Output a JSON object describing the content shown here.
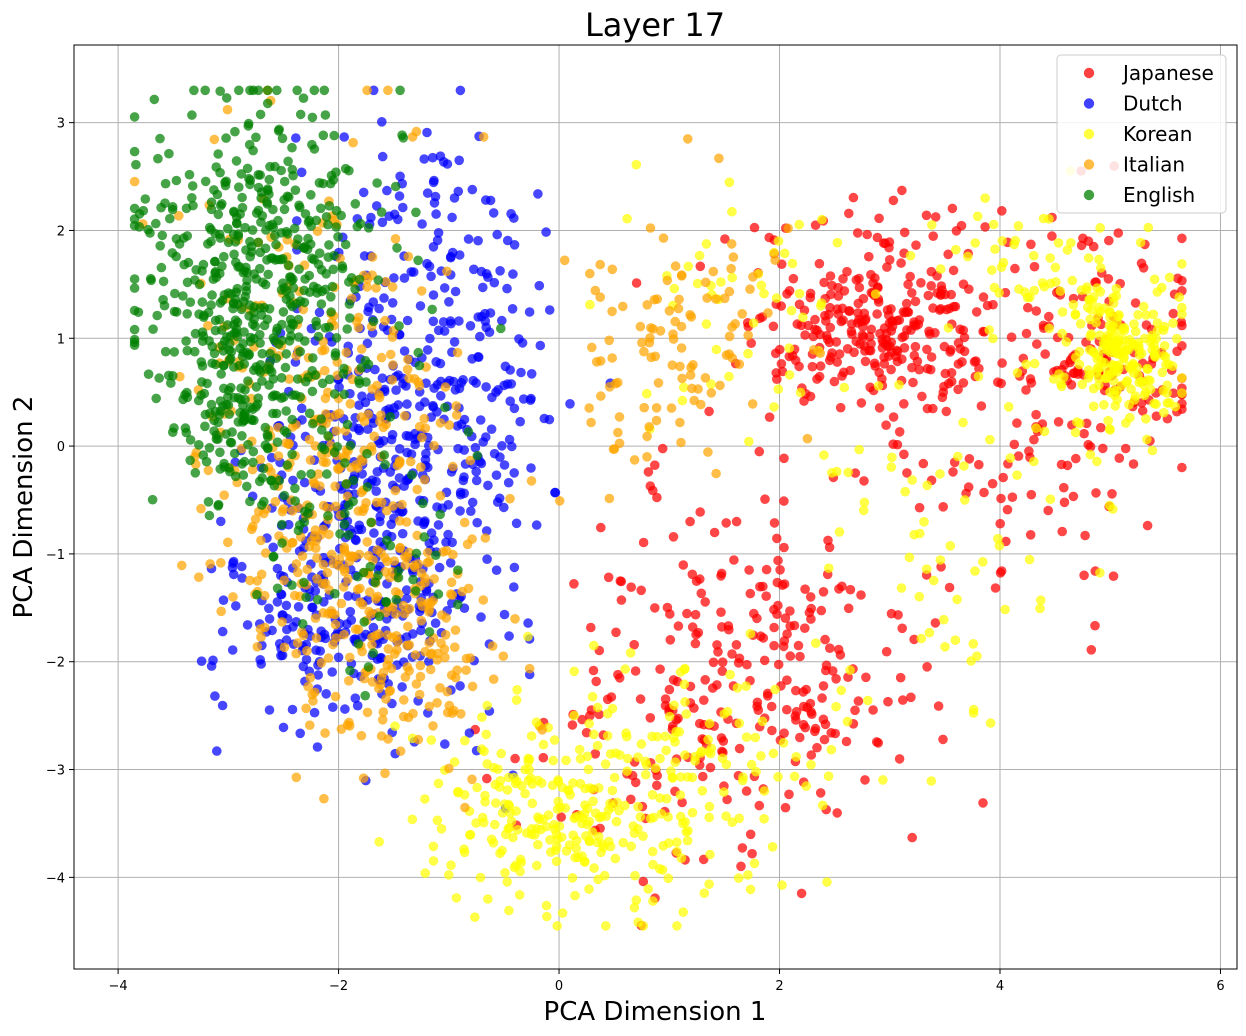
{
  "chart_data": {
    "type": "scatter",
    "title": "Layer 17",
    "xlabel": "PCA Dimension 1",
    "ylabel": "PCA Dimension 2",
    "xlim": [
      -4.4,
      6.15
    ],
    "ylim": [
      -4.85,
      3.72
    ],
    "xticks": [
      -4,
      -2,
      0,
      2,
      4,
      6
    ],
    "yticks": [
      -4,
      -3,
      -2,
      -1,
      0,
      1,
      2,
      3
    ],
    "xtick_labels": [
      "−4",
      "−2",
      "0",
      "2",
      "4",
      "6"
    ],
    "ytick_labels": [
      "−4",
      "−3",
      "−2",
      "−1",
      "0",
      "1",
      "2",
      "3"
    ],
    "grid": true,
    "legend_position": "top-right",
    "series": [
      {
        "name": "Japanese",
        "color": "#ff0000",
        "clusters": [
          {
            "cx": 2.9,
            "cy": 1.0,
            "sx": 0.55,
            "sy": 0.35,
            "n": 260
          },
          {
            "cx": 4.9,
            "cy": 0.9,
            "sx": 0.45,
            "sy": 0.5,
            "n": 130
          },
          {
            "cx": 3.3,
            "cy": 1.9,
            "sx": 0.7,
            "sy": 0.25,
            "n": 40
          },
          {
            "cx": 2.1,
            "cy": -2.1,
            "sx": 0.65,
            "sy": 0.65,
            "n": 150
          },
          {
            "cx": 0.9,
            "cy": -2.7,
            "sx": 0.7,
            "sy": 0.6,
            "n": 110
          },
          {
            "cx": 3.9,
            "cy": -0.4,
            "sx": 0.7,
            "sy": 0.6,
            "n": 80
          },
          {
            "cx": 1.3,
            "cy": -1.0,
            "sx": 0.7,
            "sy": 0.6,
            "n": 40
          }
        ]
      },
      {
        "name": "Dutch",
        "color": "#0000ff",
        "clusters": [
          {
            "cx": -1.6,
            "cy": -0.5,
            "sx": 0.55,
            "sy": 1.0,
            "n": 380
          },
          {
            "cx": -1.2,
            "cy": 1.4,
            "sx": 0.5,
            "sy": 0.9,
            "n": 180
          },
          {
            "cx": -2.1,
            "cy": -1.8,
            "sx": 0.5,
            "sy": 0.55,
            "n": 110
          },
          {
            "cx": -0.5,
            "cy": 0.3,
            "sx": 0.35,
            "sy": 0.9,
            "n": 40
          }
        ]
      },
      {
        "name": "Korean",
        "color": "#ffff00",
        "clusters": [
          {
            "cx": 5.1,
            "cy": 0.85,
            "sx": 0.28,
            "sy": 0.35,
            "n": 220
          },
          {
            "cx": 0.0,
            "cy": -3.4,
            "sx": 0.55,
            "sy": 0.45,
            "n": 230
          },
          {
            "cx": 1.1,
            "cy": -3.0,
            "sx": 0.8,
            "sy": 0.55,
            "n": 130
          },
          {
            "cx": 3.5,
            "cy": -0.8,
            "sx": 0.7,
            "sy": 0.9,
            "n": 70
          },
          {
            "cx": 1.8,
            "cy": 1.2,
            "sx": 0.6,
            "sy": 0.6,
            "n": 50
          },
          {
            "cx": 4.3,
            "cy": 1.7,
            "sx": 0.5,
            "sy": 0.3,
            "n": 50
          }
        ]
      },
      {
        "name": "Italian",
        "color": "#ffa500",
        "clusters": [
          {
            "cx": -2.0,
            "cy": -0.6,
            "sx": 0.6,
            "sy": 0.8,
            "n": 280
          },
          {
            "cx": -1.4,
            "cy": -1.9,
            "sx": 0.45,
            "sy": 0.55,
            "n": 150
          },
          {
            "cx": -2.3,
            "cy": 1.2,
            "sx": 0.55,
            "sy": 0.9,
            "n": 130
          },
          {
            "cx": 1.1,
            "cy": 1.1,
            "sx": 0.45,
            "sy": 0.55,
            "n": 90
          },
          {
            "cx": 0.7,
            "cy": 0.1,
            "sx": 0.35,
            "sy": 0.4,
            "n": 20
          }
        ]
      },
      {
        "name": "English",
        "color": "#008000",
        "clusters": [
          {
            "cx": -2.7,
            "cy": 1.6,
            "sx": 0.55,
            "sy": 0.8,
            "n": 480
          },
          {
            "cx": -3.0,
            "cy": 0.6,
            "sx": 0.35,
            "sy": 0.5,
            "n": 110
          },
          {
            "cx": -2.3,
            "cy": -0.3,
            "sx": 0.45,
            "sy": 0.45,
            "n": 70
          },
          {
            "cx": -1.7,
            "cy": -1.3,
            "sx": 0.4,
            "sy": 0.5,
            "n": 40
          }
        ]
      }
    ]
  }
}
